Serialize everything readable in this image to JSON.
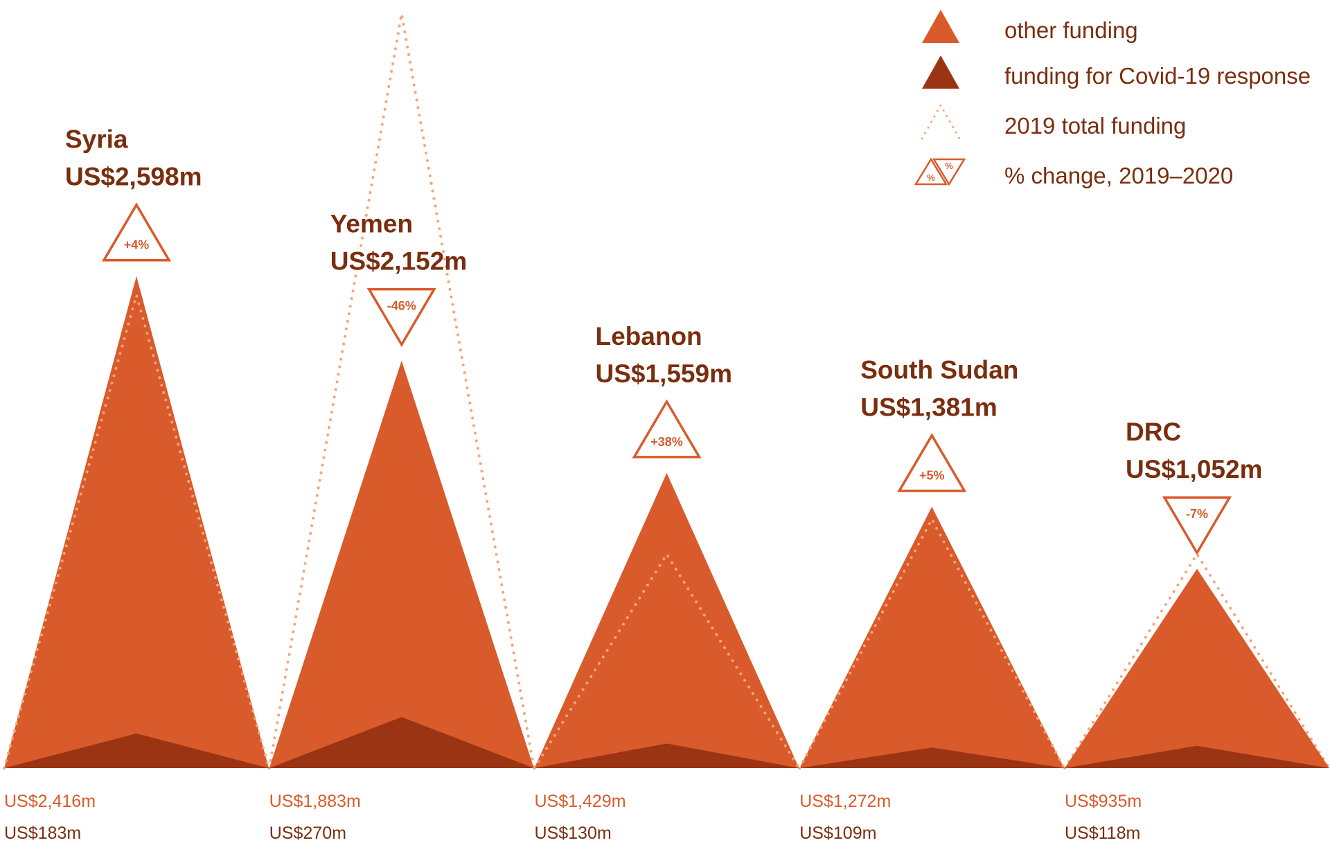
{
  "colors": {
    "other_funding": "#d95a2b",
    "covid_funding": "#9b3412",
    "dotted_2019": "#f4a57a",
    "text_dark": "#7a2e0e",
    "text_accent": "#d95a2b"
  },
  "legend": {
    "placement": "top-right",
    "items": [
      {
        "key": "other",
        "label": "other funding"
      },
      {
        "key": "covid",
        "label": "funding for Covid-19 response"
      },
      {
        "key": "total2019",
        "label": "2019 total funding"
      },
      {
        "key": "change",
        "label": "% change, 2019–2020",
        "icon_text": "%"
      }
    ]
  },
  "chart_data": {
    "type": "area",
    "categories": [
      "Syria",
      "Yemen",
      "Lebanon",
      "South Sudan",
      "DRC"
    ],
    "total_labels": [
      "US$2,598m",
      "US$2,152m",
      "US$1,559m",
      "US$1,381m",
      "US$1,052m"
    ],
    "change_labels": [
      "+4%",
      "-46%",
      "+38%",
      "+5%",
      "-7%"
    ],
    "change_pct": [
      4,
      -46,
      38,
      5,
      -7
    ],
    "other_labels": [
      "US$2,416m",
      "US$1,883m",
      "US$1,429m",
      "US$1,272m",
      "US$935m"
    ],
    "covid_labels": [
      "US$183m",
      "US$270m",
      "US$130m",
      "US$109m",
      "US$118m"
    ],
    "series": [
      {
        "name": "other funding",
        "values": [
          2416,
          1883,
          1429,
          1272,
          935
        ]
      },
      {
        "name": "funding for Covid-19 response",
        "values": [
          183,
          270,
          130,
          109,
          118
        ]
      }
    ],
    "total_2020": [
      2598,
      2152,
      1559,
      1381,
      1052
    ],
    "total_2019": [
      2498,
      3985,
      1130,
      1315,
      1131
    ],
    "unit": "US$ millions"
  }
}
